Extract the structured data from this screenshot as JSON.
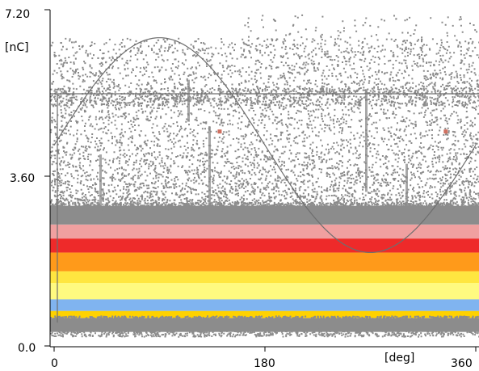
{
  "chart_data": {
    "type": "heatmap",
    "title": "",
    "xlabel": "[deg]",
    "ylabel": "[nC]",
    "xlim": [
      0,
      360
    ],
    "ylim": [
      0.0,
      7.2
    ],
    "x_tick_labels": [
      "0",
      "180",
      "360"
    ],
    "x_tick_values": [
      0,
      180,
      360
    ],
    "y_tick_labels": [
      "0.0",
      "3.60",
      "7.20"
    ],
    "y_tick_values": [
      0.0,
      3.6,
      7.2
    ],
    "grid": false,
    "legend": "none",
    "reference_lines": [
      {
        "kind": "horizontal",
        "y": 5.4
      },
      {
        "kind": "vertical",
        "x": 0
      }
    ],
    "sine_reference": {
      "center": 4.3,
      "amplitude": 2.3,
      "period_deg": 360,
      "peak_at_deg": 90
    },
    "density_bands": [
      {
        "from": 0.3,
        "to": 0.6,
        "level": "low"
      },
      {
        "from": 0.6,
        "to": 0.75,
        "level": "high-yellow"
      },
      {
        "from": 0.75,
        "to": 1.0,
        "level": "blue"
      },
      {
        "from": 1.0,
        "to": 1.6,
        "level": "yellow"
      },
      {
        "from": 1.6,
        "to": 2.0,
        "level": "orange"
      },
      {
        "from": 2.0,
        "to": 2.3,
        "level": "red"
      },
      {
        "from": 2.3,
        "to": 2.6,
        "level": "pink"
      },
      {
        "from": 2.6,
        "to": 3.0,
        "level": "low"
      }
    ],
    "scatter_region": {
      "from": 3.0,
      "to": 6.6,
      "level": "sparse"
    },
    "markers": [
      {
        "x": 141,
        "y": 4.6
      },
      {
        "x": 334,
        "y": 4.6
      }
    ],
    "colors": {
      "low": "#8c8c8c",
      "sparse": "#8a8a8a",
      "pink": "#f0a0a0",
      "red": "#ee2a2a",
      "orange": "#ff9a1a",
      "yellow": "#ffe640",
      "pale-yellow": "#ffff90",
      "blue": "#80b4f0",
      "high-yellow": "#ffd200",
      "line": "#6e6e6e",
      "marker": "#d07060"
    }
  }
}
